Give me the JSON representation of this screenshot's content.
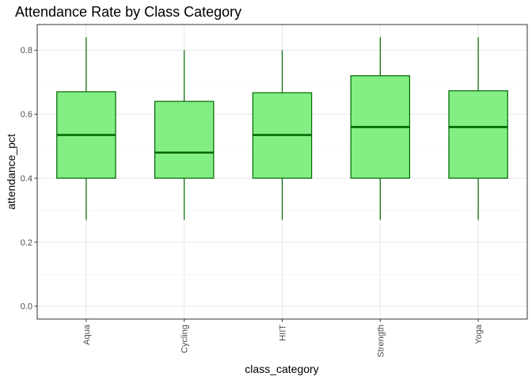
{
  "chart_data": {
    "type": "boxplot",
    "title": "Attendance Rate by Class Category",
    "xlabel": "class_category",
    "ylabel": "attendance_pct",
    "ylim": [
      -0.04,
      0.88
    ],
    "y_ticks": [
      0.0,
      0.2,
      0.4,
      0.6,
      0.8
    ],
    "y_tick_labels": [
      "0.0",
      "0.2",
      "0.4",
      "0.6",
      "0.8"
    ],
    "grid": true,
    "categories": [
      "Aqua",
      "Cycling",
      "HIIT",
      "Strength",
      "Yoga"
    ],
    "boxes": [
      {
        "category": "Aqua",
        "min": 0.27,
        "q1": 0.4,
        "median": 0.535,
        "q3": 0.67,
        "max": 0.84
      },
      {
        "category": "Cycling",
        "min": 0.27,
        "q1": 0.4,
        "median": 0.48,
        "q3": 0.64,
        "max": 0.8
      },
      {
        "category": "HIIT",
        "min": 0.27,
        "q1": 0.4,
        "median": 0.535,
        "q3": 0.667,
        "max": 0.8
      },
      {
        "category": "Strength",
        "min": 0.27,
        "q1": 0.4,
        "median": 0.56,
        "q3": 0.72,
        "max": 0.84
      },
      {
        "category": "Yoga",
        "min": 0.27,
        "q1": 0.4,
        "median": 0.56,
        "q3": 0.673,
        "max": 0.84
      }
    ],
    "colors": {
      "box_fill": "#83ee83",
      "box_line": "#006400"
    }
  }
}
